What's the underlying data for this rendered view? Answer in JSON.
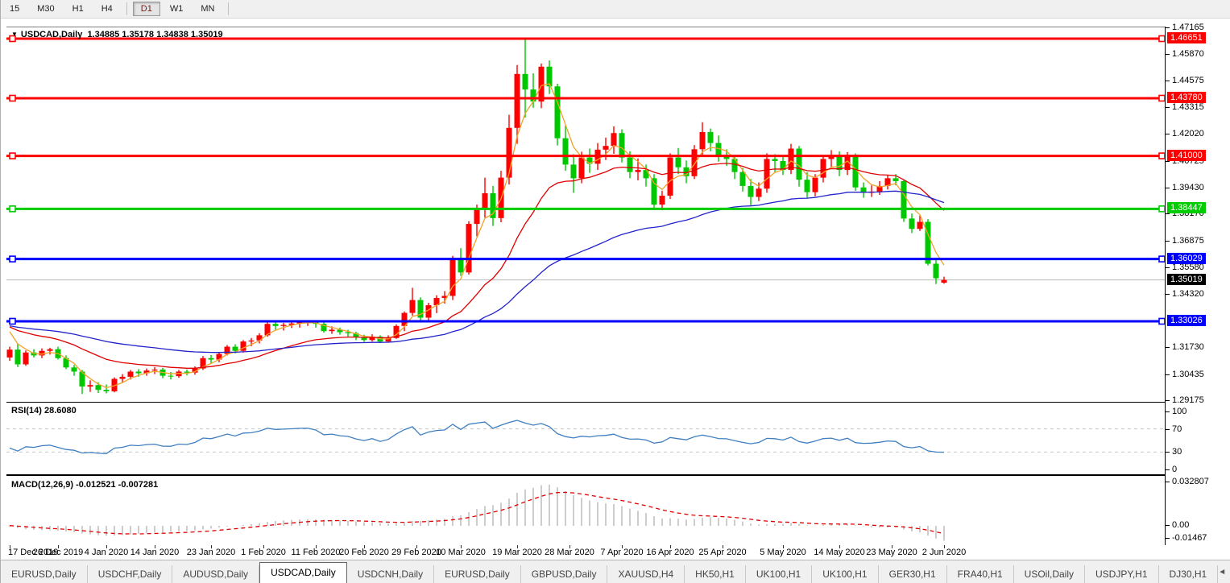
{
  "toolbar": {
    "timeframes": [
      "15",
      "M30",
      "H1",
      "H4",
      "D1",
      "W1",
      "MN"
    ],
    "active": "D1"
  },
  "chart": {
    "title_symbol": "USDCAD,Daily",
    "title_ohlc": "1.34885 1.35178 1.34838 1.35019",
    "dropdown_icon": "▼"
  },
  "chart_data": {
    "type": "candlestick",
    "symbol": "USDCAD",
    "timeframe": "Daily",
    "current": {
      "open": "1.34885",
      "high": "1.35178",
      "low": "1.34838",
      "close": "1.35019"
    },
    "bull_color": "#ff0000",
    "bear_color": "#00c800",
    "candles": [
      [
        1.3128,
        1.318,
        1.3112,
        1.3166
      ],
      [
        1.3166,
        1.3192,
        1.3082,
        1.3095
      ],
      [
        1.3095,
        1.3162,
        1.3088,
        1.3152
      ],
      [
        1.3152,
        1.3168,
        1.3128,
        1.3138
      ],
      [
        1.3138,
        1.3172,
        1.3125,
        1.316
      ],
      [
        1.316,
        1.3175,
        1.3142,
        1.3168
      ],
      [
        1.3168,
        1.318,
        1.3118,
        1.3125
      ],
      [
        1.3125,
        1.3138,
        1.3072,
        1.308
      ],
      [
        1.308,
        1.3092,
        1.304,
        1.306
      ],
      [
        1.306,
        1.3068,
        1.2952,
        1.2988
      ],
      [
        1.2988,
        1.3018,
        1.2962,
        1.2995
      ],
      [
        1.2995,
        1.3008,
        1.2957,
        1.2972
      ],
      [
        1.2972,
        1.2998,
        1.2955,
        1.2965
      ],
      [
        1.2965,
        1.3032,
        1.296,
        1.3025
      ],
      [
        1.3025,
        1.3048,
        1.3008,
        1.3035
      ],
      [
        1.3035,
        1.3068,
        1.3022,
        1.306
      ],
      [
        1.306,
        1.3072,
        1.3035,
        1.3052
      ],
      [
        1.3052,
        1.3075,
        1.304,
        1.3065
      ],
      [
        1.3065,
        1.3082,
        1.3048,
        1.307
      ],
      [
        1.307,
        1.3078,
        1.3028,
        1.304
      ],
      [
        1.304,
        1.3058,
        1.3022,
        1.3038
      ],
      [
        1.3038,
        1.3068,
        1.303,
        1.306
      ],
      [
        1.306,
        1.307,
        1.3042,
        1.3055
      ],
      [
        1.3055,
        1.3085,
        1.3045,
        1.3075
      ],
      [
        1.3075,
        1.3135,
        1.3068,
        1.3125
      ],
      [
        1.3125,
        1.314,
        1.3098,
        1.3118
      ],
      [
        1.3118,
        1.3152,
        1.3105,
        1.3145
      ],
      [
        1.3145,
        1.3188,
        1.3138,
        1.318
      ],
      [
        1.318,
        1.3192,
        1.3148,
        1.316
      ],
      [
        1.316,
        1.3212,
        1.3152,
        1.3205
      ],
      [
        1.3205,
        1.3222,
        1.3182,
        1.321
      ],
      [
        1.321,
        1.3245,
        1.3196,
        1.3235
      ],
      [
        1.3235,
        1.3298,
        1.3228,
        1.329
      ],
      [
        1.329,
        1.3302,
        1.3262,
        1.328
      ],
      [
        1.328,
        1.3295,
        1.3258,
        1.3285
      ],
      [
        1.3285,
        1.3302,
        1.327,
        1.3292
      ],
      [
        1.3292,
        1.3305,
        1.3272,
        1.33
      ],
      [
        1.33,
        1.3306,
        1.328,
        1.3302
      ],
      [
        1.3302,
        1.3305,
        1.3272,
        1.329
      ],
      [
        1.329,
        1.3298,
        1.3248,
        1.3255
      ],
      [
        1.3255,
        1.3278,
        1.3242,
        1.3262
      ],
      [
        1.3262,
        1.3272,
        1.3238,
        1.325
      ],
      [
        1.325,
        1.3262,
        1.3228,
        1.3245
      ],
      [
        1.3245,
        1.3252,
        1.3212,
        1.3225
      ],
      [
        1.3225,
        1.3238,
        1.3203,
        1.3212
      ],
      [
        1.3212,
        1.324,
        1.3205,
        1.3228
      ],
      [
        1.3228,
        1.3235,
        1.3198,
        1.3205
      ],
      [
        1.3205,
        1.3235,
        1.3202,
        1.3222
      ],
      [
        1.3222,
        1.3288,
        1.3218,
        1.328
      ],
      [
        1.328,
        1.335,
        1.3255,
        1.3343
      ],
      [
        1.3343,
        1.3464,
        1.333,
        1.3405
      ],
      [
        1.3405,
        1.3418,
        1.3305,
        1.332
      ],
      [
        1.332,
        1.3392,
        1.3298,
        1.338
      ],
      [
        1.338,
        1.3428,
        1.3342,
        1.3415
      ],
      [
        1.3415,
        1.3448,
        1.3388,
        1.3425
      ],
      [
        1.3425,
        1.3618,
        1.3405,
        1.3608
      ],
      [
        1.3608,
        1.3655,
        1.3522,
        1.3538
      ],
      [
        1.3538,
        1.3785,
        1.3528,
        1.3772
      ],
      [
        1.3772,
        1.3865,
        1.3712,
        1.3848
      ],
      [
        1.3848,
        1.3995,
        1.3802,
        1.392
      ],
      [
        1.392,
        1.3955,
        1.3762,
        1.38
      ],
      [
        1.38,
        1.4028,
        1.378,
        1.3995
      ],
      [
        1.3995,
        1.4298,
        1.3962,
        1.4235
      ],
      [
        1.4235,
        1.4538,
        1.4158,
        1.4495
      ],
      [
        1.4495,
        1.4665,
        1.4285,
        1.442
      ],
      [
        1.442,
        1.4498,
        1.4332,
        1.4362
      ],
      [
        1.4362,
        1.4545,
        1.433,
        1.453
      ],
      [
        1.453,
        1.456,
        1.4398,
        1.4435
      ],
      [
        1.4435,
        1.4448,
        1.415,
        1.4185
      ],
      [
        1.4185,
        1.4245,
        1.4028,
        1.4058
      ],
      [
        1.4058,
        1.4108,
        1.3922,
        1.3992
      ],
      [
        1.3992,
        1.412,
        1.3968,
        1.4092
      ],
      [
        1.4092,
        1.4135,
        1.4018,
        1.4062
      ],
      [
        1.4062,
        1.4162,
        1.4032,
        1.413
      ],
      [
        1.413,
        1.4188,
        1.408,
        1.4148
      ],
      [
        1.4148,
        1.4242,
        1.411,
        1.421
      ],
      [
        1.421,
        1.4228,
        1.4068,
        1.4092
      ],
      [
        1.4092,
        1.4122,
        1.3992,
        1.4022
      ],
      [
        1.4022,
        1.4088,
        1.3982,
        1.4032
      ],
      [
        1.4032,
        1.4058,
        1.3952,
        1.3992
      ],
      [
        1.3992,
        1.4012,
        1.3842,
        1.3865
      ],
      [
        1.3865,
        1.3932,
        1.3838,
        1.3908
      ],
      [
        1.3908,
        1.4112,
        1.3892,
        1.4092
      ],
      [
        1.4092,
        1.4138,
        1.4012,
        1.4045
      ],
      [
        1.4045,
        1.4078,
        1.3968,
        1.4002
      ],
      [
        1.4002,
        1.4152,
        1.3988,
        1.4132
      ],
      [
        1.4132,
        1.4262,
        1.4102,
        1.4215
      ],
      [
        1.4215,
        1.4232,
        1.4122,
        1.4162
      ],
      [
        1.4162,
        1.4198,
        1.4072,
        1.4095
      ],
      [
        1.4095,
        1.4132,
        1.4052,
        1.4085
      ],
      [
        1.4085,
        1.4102,
        1.3988,
        1.4022
      ],
      [
        1.4022,
        1.4042,
        1.3928,
        1.3955
      ],
      [
        1.3955,
        1.3988,
        1.3862,
        1.3902
      ],
      [
        1.3902,
        1.3972,
        1.3882,
        1.3942
      ],
      [
        1.3942,
        1.4112,
        1.3922,
        1.4085
      ],
      [
        1.4085,
        1.4108,
        1.4022,
        1.4075
      ],
      [
        1.4075,
        1.4098,
        1.4008,
        1.4032
      ],
      [
        1.4032,
        1.4158,
        1.4012,
        1.4135
      ],
      [
        1.4135,
        1.4148,
        1.3952,
        1.3985
      ],
      [
        1.3985,
        1.4022,
        1.3898,
        1.3925
      ],
      [
        1.3925,
        1.4012,
        1.3905,
        1.3995
      ],
      [
        1.3995,
        1.4102,
        1.3972,
        1.4085
      ],
      [
        1.4085,
        1.4128,
        1.4042,
        1.4102
      ],
      [
        1.4102,
        1.4122,
        1.4002,
        1.4032
      ],
      [
        1.4032,
        1.4118,
        1.4008,
        1.4105
      ],
      [
        1.4105,
        1.4112,
        1.3932,
        1.3948
      ],
      [
        1.3948,
        1.3972,
        1.3898,
        1.3922
      ],
      [
        1.3922,
        1.3958,
        1.3902,
        1.3928
      ],
      [
        1.3928,
        1.3978,
        1.3912,
        1.3955
      ],
      [
        1.3955,
        1.4008,
        1.3938,
        1.3992
      ],
      [
        1.3992,
        1.4012,
        1.3958,
        1.3978
      ],
      [
        1.3978,
        1.3985,
        1.3782,
        1.3798
      ],
      [
        1.3798,
        1.3822,
        1.3728,
        1.3748
      ],
      [
        1.3748,
        1.3812,
        1.3738,
        1.3782
      ],
      [
        1.3782,
        1.3795,
        1.3572,
        1.358
      ],
      [
        1.358,
        1.3598,
        1.3482,
        1.351
      ],
      [
        1.34885,
        1.35178,
        1.34838,
        1.35019
      ]
    ],
    "moving_averages": [
      {
        "name": "fast-ma",
        "period": 5,
        "method": "lwma",
        "color": "#f2a229"
      },
      {
        "name": "medium-ma",
        "period": 20,
        "method": "ema",
        "color": "#e00000"
      },
      {
        "name": "slow-ma",
        "period": 55,
        "method": "ema",
        "color": "#2323cc"
      }
    ],
    "hlines": [
      {
        "price": 1.46651,
        "label": "1.46651",
        "color": "#ff0000"
      },
      {
        "price": 1.4378,
        "label": "1.43780",
        "color": "#ff0000"
      },
      {
        "price": 1.41,
        "label": "1.41000",
        "color": "#ff0000"
      },
      {
        "price": 1.38447,
        "label": "1.38447",
        "color": "#00cc00"
      },
      {
        "price": 1.36029,
        "label": "1.36029",
        "color": "#0000ff"
      },
      {
        "price": 1.33026,
        "label": "1.33026",
        "color": "#0000ff"
      }
    ],
    "current_price_line": {
      "price": 1.35019,
      "label": "1.35019",
      "line_color": "#b8b8b8",
      "label_bg": "#000000"
    },
    "price_axis_ticks": [
      "1.47165",
      "1.45870",
      "1.44575",
      "1.43315",
      "1.42020",
      "1.40725",
      "1.39430",
      "1.38170",
      "1.36875",
      "1.35580",
      "1.34320",
      "1.31730",
      "1.30435",
      "1.29175"
    ],
    "date_labels": [
      {
        "text": "17 Dec 2019",
        "idx": 0
      },
      {
        "text": "26 Dec 2019",
        "idx": 6
      },
      {
        "text": "4 Jan 2020",
        "idx": 12
      },
      {
        "text": "14 Jan 2020",
        "idx": 18
      },
      {
        "text": "23 Jan 2020",
        "idx": 25
      },
      {
        "text": "1 Feb 2020",
        "idx": 31.5
      },
      {
        "text": "11 Feb 2020",
        "idx": 38
      },
      {
        "text": "20 Feb 2020",
        "idx": 44
      },
      {
        "text": "29 Feb 2020",
        "idx": 50.5
      },
      {
        "text": "10 Mar 2020",
        "idx": 56
      },
      {
        "text": "19 Mar 2020",
        "idx": 63
      },
      {
        "text": "28 Mar 2020",
        "idx": 69.5
      },
      {
        "text": "7 Apr 2020",
        "idx": 76
      },
      {
        "text": "16 Apr 2020",
        "idx": 82
      },
      {
        "text": "25 Apr 2020",
        "idx": 88.5
      },
      {
        "text": "5 May 2020",
        "idx": 96
      },
      {
        "text": "14 May 2020",
        "idx": 103
      },
      {
        "text": "23 May 2020",
        "idx": 109.5
      },
      {
        "text": "2 Jun 2020",
        "idx": 116
      }
    ]
  },
  "rsi": {
    "label": "RSI(14) 28.6080",
    "period": 14,
    "value": "28.6080",
    "axis_ticks": [
      "100",
      "70",
      "30",
      "0"
    ],
    "levels": [
      70,
      30
    ],
    "line_color": "#3f7fc1",
    "level_color": "#c8c8c8"
  },
  "macd": {
    "label": "MACD(12,26,9) -0.012521 -0.007281",
    "params": "12,26,9",
    "value": "-0.012521",
    "signal_value": "-0.007281",
    "axis_ticks": [
      "0.032807",
      "0.00",
      "-0.01467"
    ],
    "bar_color": "#ababab",
    "signal_color": "#e00000"
  },
  "tabs": {
    "items": [
      "EURUSD,Daily",
      "USDCHF,Daily",
      "AUDUSD,Daily",
      "USDCAD,Daily",
      "USDCNH,Daily",
      "EURUSD,Daily",
      "GBPUSD,Daily",
      "XAUUSD,H4",
      "HK50,H1",
      "UK100,H1",
      "UK100,H1",
      "GER30,H1",
      "FRA40,H1",
      "USOil,Daily",
      "USDJPY,H1",
      "DJ30,H1"
    ],
    "active_index": 3,
    "scroll_left_icon": "◄",
    "scroll_right_icon": "►"
  }
}
